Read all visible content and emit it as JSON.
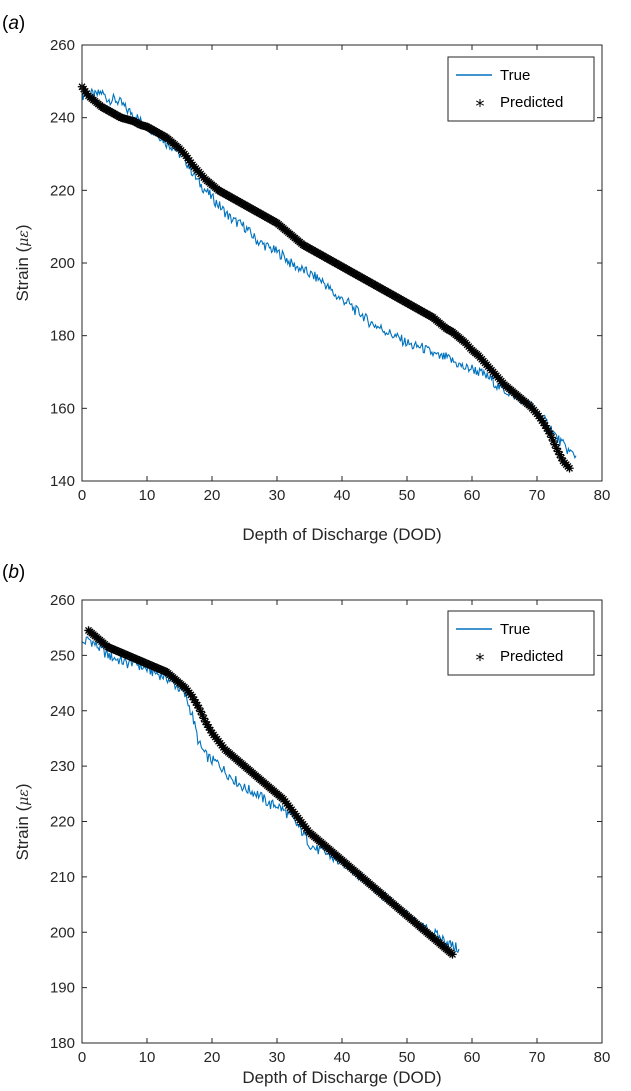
{
  "chart_data": [
    {
      "type": "line",
      "panel_label_prefix": "(",
      "panel_label_letter": "a",
      "panel_label_suffix": ")",
      "xlabel": "Depth of Discharge (DOD)",
      "ylabel_prefix": "Strain (",
      "ylabel_unit": "με",
      "ylabel_suffix": ")",
      "xlim": [
        0,
        80
      ],
      "ylim": [
        140,
        260
      ],
      "xticks": [
        0,
        10,
        20,
        30,
        40,
        50,
        60,
        70,
        80
      ],
      "yticks": [
        140,
        160,
        180,
        200,
        220,
        240,
        260
      ],
      "legend_position": "top-right",
      "legend": [
        "True",
        "Predicted"
      ],
      "series": [
        {
          "name": "True",
          "style": "line",
          "color": "#0072BD",
          "x": [
            0,
            1,
            2,
            3,
            4,
            5,
            6,
            7,
            8,
            9,
            10,
            11,
            12,
            13,
            14,
            15,
            16,
            17,
            18,
            19,
            20,
            21,
            22,
            23,
            24,
            25,
            26,
            27,
            28,
            29,
            30,
            31,
            32,
            33,
            34,
            35,
            36,
            37,
            38,
            39,
            40,
            41,
            42,
            43,
            44,
            45,
            46,
            47,
            48,
            49,
            50,
            51,
            52,
            53,
            54,
            55,
            56,
            57,
            58,
            59,
            60,
            61,
            62,
            63,
            64,
            65,
            66,
            67,
            68,
            69,
            70,
            71,
            72,
            73,
            74,
            75,
            76
          ],
          "y": [
            246,
            247,
            246,
            247,
            245,
            245,
            244,
            242,
            241,
            239,
            238,
            236,
            235,
            233,
            232,
            230,
            228,
            225,
            222,
            220,
            218,
            216,
            214,
            212,
            211,
            210,
            208,
            206,
            205,
            204,
            203,
            202,
            200,
            199,
            198,
            197,
            196,
            195,
            193,
            191,
            190,
            189,
            187,
            186,
            184,
            183,
            182,
            181,
            180,
            179,
            178,
            177,
            177,
            176,
            175,
            174,
            174,
            173,
            172,
            171,
            171,
            170,
            169,
            168,
            166,
            165,
            164,
            163,
            162,
            161,
            159,
            157,
            155,
            152,
            150,
            148,
            147
          ]
        },
        {
          "name": "Predicted",
          "style": "marker",
          "marker": "*",
          "color": "#000000",
          "x": [
            0,
            1,
            2,
            3,
            4,
            5,
            6,
            7,
            8,
            9,
            10,
            11,
            12,
            13,
            14,
            15,
            16,
            17,
            18,
            19,
            20,
            21,
            22,
            23,
            24,
            25,
            26,
            27,
            28,
            29,
            30,
            31,
            32,
            33,
            34,
            35,
            36,
            37,
            38,
            39,
            40,
            41,
            42,
            43,
            44,
            45,
            46,
            47,
            48,
            49,
            50,
            51,
            52,
            53,
            54,
            55,
            56,
            57,
            58,
            59,
            60,
            61,
            62,
            63,
            64,
            65,
            66,
            67,
            68,
            69,
            70,
            71,
            72,
            73,
            74,
            75
          ],
          "y": [
            248.5,
            246,
            244.5,
            243,
            242,
            241,
            240,
            239.5,
            239,
            238,
            237.5,
            236.5,
            235.5,
            234.5,
            233,
            231.5,
            229.5,
            227,
            225,
            223,
            221.5,
            220,
            219,
            218,
            217,
            216,
            215,
            214,
            213,
            212,
            211,
            209.5,
            208,
            206.5,
            205,
            204,
            203,
            202,
            201,
            200,
            199,
            198,
            197,
            196,
            195,
            194,
            193,
            192,
            191,
            190,
            189,
            188,
            187,
            186,
            185,
            183.5,
            182,
            181,
            179.5,
            178,
            176,
            174.5,
            172.5,
            170.5,
            168.5,
            166.5,
            165,
            163.5,
            162,
            160.5,
            158.5,
            156,
            153,
            149,
            145.5,
            143.5
          ]
        }
      ]
    },
    {
      "type": "line",
      "panel_label_prefix": "(",
      "panel_label_letter": "b",
      "panel_label_suffix": ")",
      "xlabel": "Depth of Discharge (DOD)",
      "ylabel_prefix": "Strain (",
      "ylabel_unit": "με",
      "ylabel_suffix": ")",
      "xlim": [
        0,
        80
      ],
      "ylim": [
        180,
        260
      ],
      "xticks": [
        0,
        10,
        20,
        30,
        40,
        50,
        60,
        70,
        80
      ],
      "yticks": [
        180,
        190,
        200,
        210,
        220,
        230,
        240,
        250,
        260
      ],
      "legend_position": "top-right",
      "legend": [
        "True",
        "Predicted"
      ],
      "series": [
        {
          "name": "True",
          "style": "line",
          "color": "#0072BD",
          "x": [
            0,
            1,
            2,
            3,
            4,
            5,
            6,
            7,
            8,
            9,
            10,
            11,
            12,
            13,
            14,
            15,
            16,
            17,
            18,
            19,
            20,
            21,
            22,
            23,
            24,
            25,
            26,
            27,
            28,
            29,
            30,
            31,
            32,
            33,
            34,
            35,
            36,
            37,
            38,
            39,
            40,
            41,
            42,
            43,
            44,
            45,
            46,
            47,
            48,
            49,
            50,
            51,
            52,
            53,
            54,
            55,
            56,
            57,
            58
          ],
          "y": [
            252,
            253,
            252,
            251,
            250,
            249.5,
            249,
            248.5,
            249,
            248,
            247.5,
            247,
            246.5,
            246,
            245,
            244,
            242.5,
            239,
            234,
            232,
            231,
            230.5,
            229,
            228,
            227,
            226,
            225.5,
            225,
            224,
            223,
            223,
            222,
            221,
            219.5,
            218,
            216,
            215,
            214.5,
            214,
            213,
            212.5,
            212,
            211,
            210,
            209,
            208,
            207,
            206,
            205,
            204,
            203,
            202,
            201,
            200.5,
            200,
            199,
            198.5,
            197.5,
            197
          ]
        },
        {
          "name": "Predicted",
          "style": "marker",
          "marker": "*",
          "color": "#000000",
          "x": [
            1,
            2,
            3,
            4,
            5,
            6,
            7,
            8,
            9,
            10,
            11,
            12,
            13,
            14,
            15,
            16,
            17,
            18,
            19,
            20,
            21,
            22,
            23,
            24,
            25,
            26,
            27,
            28,
            29,
            30,
            31,
            32,
            33,
            34,
            35,
            36,
            37,
            38,
            39,
            40,
            41,
            42,
            43,
            44,
            45,
            46,
            47,
            48,
            49,
            50,
            51,
            52,
            53,
            54,
            55,
            56,
            57
          ],
          "y": [
            254.5,
            253.5,
            252.5,
            251.5,
            251,
            250.5,
            250,
            249.5,
            249,
            248.5,
            248,
            247.5,
            247,
            246,
            245,
            244,
            242.5,
            240.5,
            238,
            236,
            234.5,
            233,
            232,
            231,
            230,
            229,
            228,
            227,
            226,
            225,
            224,
            222.5,
            221,
            219.5,
            218,
            217,
            216,
            215,
            214,
            213,
            212,
            211,
            210,
            209,
            208,
            207,
            206,
            205,
            204,
            203,
            202,
            201,
            200,
            199,
            198,
            197,
            196
          ]
        }
      ]
    }
  ]
}
